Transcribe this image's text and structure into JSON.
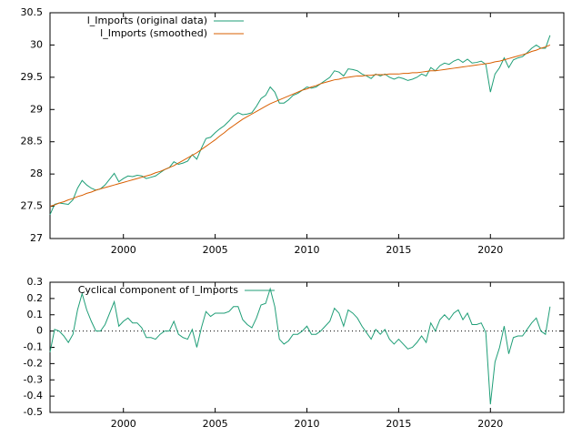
{
  "chart_data": [
    {
      "type": "line",
      "x": [
        1996,
        1996.25,
        1996.5,
        1996.75,
        1997,
        1997.25,
        1997.5,
        1997.75,
        1998,
        1998.25,
        1998.5,
        1998.75,
        1999,
        1999.25,
        1999.5,
        1999.75,
        2000,
        2000.25,
        2000.5,
        2000.75,
        2001,
        2001.25,
        2001.5,
        2001.75,
        2002,
        2002.25,
        2002.5,
        2002.75,
        2003,
        2003.25,
        2003.5,
        2003.75,
        2004,
        2004.25,
        2004.5,
        2004.75,
        2005,
        2005.25,
        2005.5,
        2005.75,
        2006,
        2006.25,
        2006.5,
        2006.75,
        2007,
        2007.25,
        2007.5,
        2007.75,
        2008,
        2008.25,
        2008.5,
        2008.75,
        2009,
        2009.25,
        2009.5,
        2009.75,
        2010,
        2010.25,
        2010.5,
        2010.75,
        2011,
        2011.25,
        2011.5,
        2011.75,
        2012,
        2012.25,
        2012.5,
        2012.75,
        2013,
        2013.25,
        2013.5,
        2013.75,
        2014,
        2014.25,
        2014.5,
        2014.75,
        2015,
        2015.25,
        2015.5,
        2015.75,
        2016,
        2016.25,
        2016.5,
        2016.75,
        2017,
        2017.25,
        2017.5,
        2017.75,
        2018,
        2018.25,
        2018.5,
        2018.75,
        2019,
        2019.25,
        2019.5,
        2019.75,
        2020,
        2020.25,
        2020.5,
        2020.75,
        2021,
        2021.25,
        2021.5,
        2021.75,
        2022,
        2022.25,
        2022.5,
        2022.75,
        2023,
        2023.25
      ],
      "series": [
        {
          "name": "l_Imports (original data)",
          "color": "#1f9e77",
          "values": [
            27.37,
            27.53,
            27.55,
            27.54,
            27.53,
            27.6,
            27.78,
            27.9,
            27.83,
            27.78,
            27.75,
            27.77,
            27.83,
            27.92,
            28.01,
            27.88,
            27.93,
            27.97,
            27.96,
            27.98,
            27.97,
            27.93,
            27.95,
            27.97,
            28.02,
            28.07,
            28.1,
            28.19,
            28.15,
            28.17,
            28.2,
            28.3,
            28.23,
            28.4,
            28.55,
            28.57,
            28.64,
            28.7,
            28.75,
            28.82,
            28.9,
            28.95,
            28.92,
            28.93,
            28.95,
            29.05,
            29.17,
            29.22,
            29.35,
            29.27,
            29.1,
            29.1,
            29.15,
            29.22,
            29.25,
            29.3,
            29.35,
            29.33,
            29.35,
            29.4,
            29.45,
            29.5,
            29.6,
            29.58,
            29.52,
            29.63,
            29.62,
            29.6,
            29.55,
            29.52,
            29.48,
            29.55,
            29.52,
            29.55,
            29.5,
            29.47,
            29.5,
            29.48,
            29.45,
            29.47,
            29.5,
            29.55,
            29.52,
            29.65,
            29.6,
            29.68,
            29.72,
            29.7,
            29.75,
            29.78,
            29.73,
            29.78,
            29.72,
            29.73,
            29.75,
            29.7,
            29.27,
            29.55,
            29.65,
            29.8,
            29.65,
            29.77,
            29.8,
            29.82,
            29.88,
            29.95,
            30.0,
            29.95,
            29.95,
            30.15
          ]
        },
        {
          "name": "l_Imports (smoothed)",
          "color": "#d95f02",
          "values": [
            27.5,
            27.52,
            27.55,
            27.57,
            27.6,
            27.62,
            27.65,
            27.67,
            27.7,
            27.72,
            27.75,
            27.77,
            27.79,
            27.81,
            27.83,
            27.85,
            27.87,
            27.89,
            27.91,
            27.93,
            27.95,
            27.97,
            27.99,
            28.02,
            28.04,
            28.07,
            28.1,
            28.13,
            28.17,
            28.21,
            28.25,
            28.29,
            28.33,
            28.38,
            28.43,
            28.48,
            28.53,
            28.59,
            28.64,
            28.7,
            28.75,
            28.8,
            28.85,
            28.89,
            28.93,
            28.97,
            29.01,
            29.05,
            29.09,
            29.12,
            29.15,
            29.18,
            29.21,
            29.24,
            29.27,
            29.3,
            29.32,
            29.35,
            29.37,
            29.4,
            29.42,
            29.44,
            29.46,
            29.47,
            29.49,
            29.5,
            29.51,
            29.52,
            29.52,
            29.53,
            29.53,
            29.54,
            29.54,
            29.54,
            29.55,
            29.55,
            29.55,
            29.56,
            29.56,
            29.57,
            29.57,
            29.58,
            29.59,
            29.6,
            29.6,
            29.61,
            29.62,
            29.63,
            29.64,
            29.65,
            29.66,
            29.67,
            29.68,
            29.69,
            29.7,
            29.71,
            29.72,
            29.74,
            29.75,
            29.77,
            29.79,
            29.81,
            29.83,
            29.85,
            29.87,
            29.9,
            29.92,
            29.95,
            29.97,
            30.0
          ]
        }
      ],
      "xlim": [
        1996,
        2024
      ],
      "xticks": [
        2000,
        2005,
        2010,
        2015,
        2020
      ],
      "ylim": [
        27,
        30.5
      ],
      "yticks": [
        27,
        27.5,
        28,
        28.5,
        29,
        29.5,
        30,
        30.5
      ]
    },
    {
      "type": "line",
      "x": [
        1996,
        1996.25,
        1996.5,
        1996.75,
        1997,
        1997.25,
        1997.5,
        1997.75,
        1998,
        1998.25,
        1998.5,
        1998.75,
        1999,
        1999.25,
        1999.5,
        1999.75,
        2000,
        2000.25,
        2000.5,
        2000.75,
        2001,
        2001.25,
        2001.5,
        2001.75,
        2002,
        2002.25,
        2002.5,
        2002.75,
        2003,
        2003.25,
        2003.5,
        2003.75,
        2004,
        2004.25,
        2004.5,
        2004.75,
        2005,
        2005.25,
        2005.5,
        2005.75,
        2006,
        2006.25,
        2006.5,
        2006.75,
        2007,
        2007.25,
        2007.5,
        2007.75,
        2008,
        2008.25,
        2008.5,
        2008.75,
        2009,
        2009.25,
        2009.5,
        2009.75,
        2010,
        2010.25,
        2010.5,
        2010.75,
        2011,
        2011.25,
        2011.5,
        2011.75,
        2012,
        2012.25,
        2012.5,
        2012.75,
        2013,
        2013.25,
        2013.5,
        2013.75,
        2014,
        2014.25,
        2014.5,
        2014.75,
        2015,
        2015.25,
        2015.5,
        2015.75,
        2016,
        2016.25,
        2016.5,
        2016.75,
        2017,
        2017.25,
        2017.5,
        2017.75,
        2018,
        2018.25,
        2018.5,
        2018.75,
        2019,
        2019.25,
        2019.5,
        2019.75,
        2020,
        2020.25,
        2020.5,
        2020.75,
        2021,
        2021.25,
        2021.5,
        2021.75,
        2022,
        2022.25,
        2022.5,
        2022.75,
        2023,
        2023.25
      ],
      "series": [
        {
          "name": "Cyclical component of l_Imports",
          "color": "#1f9e77",
          "values": [
            -0.13,
            0.01,
            0,
            -0.03,
            -0.07,
            -0.02,
            0.13,
            0.23,
            0.13,
            0.06,
            0,
            0,
            0.04,
            0.11,
            0.18,
            0.03,
            0.06,
            0.08,
            0.05,
            0.05,
            0.02,
            -0.04,
            -0.04,
            -0.05,
            -0.02,
            0,
            0,
            0.06,
            -0.02,
            -0.04,
            -0.05,
            0.01,
            -0.1,
            0.02,
            0.12,
            0.09,
            0.11,
            0.11,
            0.11,
            0.12,
            0.15,
            0.15,
            0.07,
            0.04,
            0.02,
            0.08,
            0.16,
            0.17,
            0.26,
            0.15,
            -0.05,
            -0.08,
            -0.06,
            -0.02,
            -0.02,
            0,
            0.03,
            -0.02,
            -0.02,
            0,
            0.03,
            0.06,
            0.14,
            0.11,
            0.03,
            0.13,
            0.11,
            0.08,
            0.03,
            -0.01,
            -0.05,
            0.01,
            -0.02,
            0.01,
            -0.05,
            -0.08,
            -0.05,
            -0.08,
            -0.11,
            -0.1,
            -0.07,
            -0.03,
            -0.07,
            0.05,
            0,
            0.07,
            0.1,
            0.07,
            0.11,
            0.13,
            0.07,
            0.11,
            0.04,
            0.04,
            0.05,
            -0.01,
            -0.45,
            -0.19,
            -0.1,
            0.03,
            -0.14,
            -0.04,
            -0.03,
            -0.03,
            0.01,
            0.05,
            0.08,
            0,
            -0.02,
            0.15
          ]
        }
      ],
      "xlim": [
        1996,
        2024
      ],
      "xticks": [
        2000,
        2005,
        2010,
        2015,
        2020
      ],
      "ylim": [
        -0.5,
        0.3
      ],
      "yticks": [
        -0.5,
        -0.4,
        -0.3,
        -0.2,
        -0.1,
        0,
        0.1,
        0.2,
        0.3
      ],
      "zero_line": true
    }
  ]
}
